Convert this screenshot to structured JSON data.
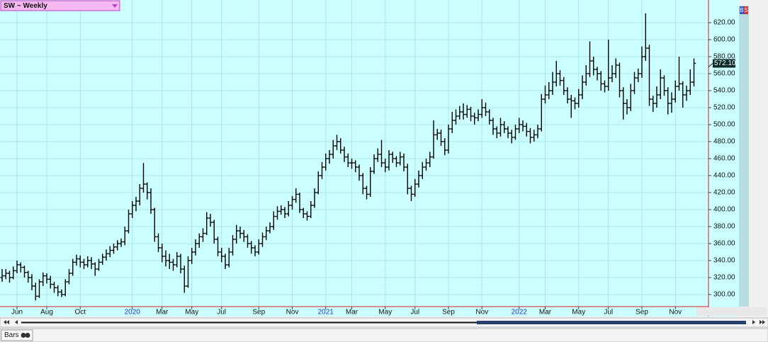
{
  "chart_data": {
    "type": "ohlc",
    "title": "SW ~ Weekly",
    "color": "#000000",
    "grid": true,
    "categories": [
      null,
      null,
      null,
      null,
      "Jun",
      null,
      null,
      null,
      null,
      null,
      null,
      null,
      "Aug",
      null,
      null,
      null,
      null,
      null,
      null,
      null,
      null,
      "Oct",
      null,
      null,
      null,
      null,
      null,
      null,
      null,
      null,
      null,
      null,
      null,
      null,
      null,
      "2020",
      null,
      null,
      null,
      null,
      null,
      null,
      null,
      "Mar",
      null,
      null,
      null,
      null,
      null,
      null,
      null,
      "May",
      null,
      null,
      null,
      null,
      null,
      null,
      null,
      "Jul",
      null,
      null,
      null,
      null,
      null,
      null,
      null,
      null,
      null,
      "Sep",
      null,
      null,
      null,
      null,
      null,
      null,
      null,
      null,
      "Nov",
      null,
      null,
      null,
      null,
      null,
      null,
      null,
      null,
      "2021",
      null,
      null,
      null,
      null,
      null,
      null,
      "Mar",
      null,
      null,
      null,
      null,
      null,
      null,
      null,
      null,
      "May",
      null,
      null,
      null,
      null,
      null,
      null,
      null,
      "Jul",
      null,
      null,
      null,
      null,
      null,
      null,
      null,
      null,
      "Sep",
      null,
      null,
      null,
      null,
      null,
      null,
      null,
      null,
      "Nov",
      null,
      null,
      null,
      null,
      null,
      null,
      null,
      null,
      null,
      "2022",
      null,
      null,
      null,
      null,
      null,
      null,
      "Mar",
      null,
      null,
      null,
      null,
      null,
      null,
      null,
      null,
      "May",
      null,
      null,
      null,
      null,
      null,
      null,
      null,
      "Jul",
      null,
      null,
      null,
      null,
      null,
      null,
      null,
      null,
      "Sep",
      null,
      null,
      null,
      null,
      null,
      null,
      null,
      null,
      "Nov",
      null,
      null,
      null,
      null,
      null
    ],
    "ohlc": [
      [
        320,
        330,
        315,
        322
      ],
      [
        322,
        330,
        318,
        325
      ],
      [
        325,
        328,
        314,
        320
      ],
      [
        320,
        333,
        318,
        328
      ],
      [
        328,
        340,
        325,
        335
      ],
      [
        335,
        338,
        326,
        332
      ],
      [
        332,
        334,
        320,
        326
      ],
      [
        326,
        328,
        314,
        320
      ],
      [
        320,
        324,
        305,
        310
      ],
      [
        310,
        314,
        293,
        298
      ],
      [
        298,
        318,
        296,
        315
      ],
      [
        315,
        326,
        310,
        322
      ],
      [
        322,
        325,
        313,
        318
      ],
      [
        318,
        322,
        307,
        312
      ],
      [
        312,
        315,
        302,
        308
      ],
      [
        308,
        311,
        298,
        303
      ],
      [
        303,
        306,
        297,
        300
      ],
      [
        300,
        318,
        298,
        315
      ],
      [
        315,
        330,
        312,
        325
      ],
      [
        325,
        342,
        322,
        338
      ],
      [
        338,
        347,
        334,
        342
      ],
      [
        342,
        346,
        332,
        338
      ],
      [
        338,
        342,
        330,
        335
      ],
      [
        335,
        345,
        332,
        340
      ],
      [
        340,
        344,
        330,
        336
      ],
      [
        336,
        338,
        322,
        330
      ],
      [
        330,
        342,
        328,
        338
      ],
      [
        338,
        348,
        335,
        344
      ],
      [
        344,
        353,
        340,
        348
      ],
      [
        348,
        357,
        344,
        352
      ],
      [
        352,
        360,
        348,
        356
      ],
      [
        356,
        364,
        352,
        360
      ],
      [
        360,
        366,
        356,
        362
      ],
      [
        362,
        380,
        358,
        375
      ],
      [
        375,
        400,
        372,
        395
      ],
      [
        395,
        410,
        390,
        405
      ],
      [
        405,
        415,
        398,
        410
      ],
      [
        410,
        430,
        405,
        425
      ],
      [
        425,
        455,
        420,
        430
      ],
      [
        430,
        432,
        412,
        420
      ],
      [
        420,
        425,
        395,
        400
      ],
      [
        400,
        402,
        362,
        368
      ],
      [
        368,
        372,
        350,
        355
      ],
      [
        355,
        360,
        338,
        345
      ],
      [
        345,
        352,
        333,
        340
      ],
      [
        340,
        348,
        330,
        338
      ],
      [
        338,
        342,
        328,
        335
      ],
      [
        335,
        350,
        332,
        345
      ],
      [
        345,
        348,
        325,
        330
      ],
      [
        330,
        334,
        302,
        310
      ],
      [
        310,
        345,
        308,
        340
      ],
      [
        340,
        355,
        336,
        350
      ],
      [
        350,
        365,
        346,
        360
      ],
      [
        360,
        372,
        355,
        368
      ],
      [
        368,
        378,
        362,
        372
      ],
      [
        372,
        397,
        370,
        390
      ],
      [
        390,
        395,
        380,
        385
      ],
      [
        385,
        388,
        360,
        365
      ],
      [
        365,
        368,
        345,
        350
      ],
      [
        350,
        355,
        338,
        345
      ],
      [
        345,
        348,
        330,
        335
      ],
      [
        335,
        355,
        332,
        350
      ],
      [
        350,
        370,
        346,
        365
      ],
      [
        365,
        382,
        360,
        375
      ],
      [
        375,
        380,
        366,
        372
      ],
      [
        372,
        376,
        362,
        368
      ],
      [
        368,
        371,
        355,
        360
      ],
      [
        360,
        363,
        348,
        355
      ],
      [
        355,
        358,
        345,
        350
      ],
      [
        350,
        365,
        347,
        360
      ],
      [
        360,
        373,
        356,
        368
      ],
      [
        368,
        380,
        364,
        375
      ],
      [
        375,
        385,
        372,
        380
      ],
      [
        380,
        398,
        376,
        392
      ],
      [
        392,
        404,
        388,
        398
      ],
      [
        398,
        405,
        394,
        400
      ],
      [
        400,
        403,
        390,
        395
      ],
      [
        395,
        410,
        392,
        405
      ],
      [
        405,
        416,
        400,
        412
      ],
      [
        412,
        425,
        408,
        418
      ],
      [
        418,
        420,
        396,
        400
      ],
      [
        400,
        402,
        390,
        395
      ],
      [
        395,
        398,
        387,
        392
      ],
      [
        392,
        410,
        390,
        405
      ],
      [
        405,
        425,
        402,
        420
      ],
      [
        420,
        445,
        418,
        440
      ],
      [
        440,
        456,
        436,
        450
      ],
      [
        450,
        466,
        446,
        460
      ],
      [
        460,
        470,
        454,
        465
      ],
      [
        465,
        482,
        460,
        475
      ],
      [
        475,
        488,
        470,
        480
      ],
      [
        480,
        484,
        466,
        470
      ],
      [
        470,
        474,
        456,
        462
      ],
      [
        462,
        466,
        450,
        455
      ],
      [
        455,
        460,
        448,
        455
      ],
      [
        455,
        458,
        444,
        450
      ],
      [
        450,
        453,
        434,
        440
      ],
      [
        440,
        443,
        418,
        425
      ],
      [
        425,
        428,
        412,
        418
      ],
      [
        418,
        450,
        415,
        445
      ],
      [
        445,
        465,
        442,
        460
      ],
      [
        460,
        472,
        456,
        465
      ],
      [
        465,
        482,
        450,
        455
      ],
      [
        455,
        460,
        444,
        450
      ],
      [
        450,
        470,
        446,
        465
      ],
      [
        465,
        468,
        455,
        460
      ],
      [
        460,
        463,
        450,
        455
      ],
      [
        455,
        468,
        452,
        462
      ],
      [
        462,
        466,
        445,
        450
      ],
      [
        450,
        454,
        418,
        425
      ],
      [
        425,
        428,
        410,
        418
      ],
      [
        418,
        436,
        415,
        430
      ],
      [
        430,
        446,
        426,
        440
      ],
      [
        440,
        456,
        436,
        450
      ],
      [
        450,
        460,
        446,
        455
      ],
      [
        455,
        468,
        450,
        462
      ],
      [
        462,
        505,
        460,
        488
      ],
      [
        488,
        495,
        482,
        490
      ],
      [
        490,
        494,
        475,
        480
      ],
      [
        480,
        484,
        464,
        470
      ],
      [
        470,
        500,
        466,
        495
      ],
      [
        495,
        515,
        490,
        505
      ],
      [
        505,
        518,
        500,
        510
      ],
      [
        510,
        522,
        506,
        515
      ],
      [
        515,
        525,
        506,
        512
      ],
      [
        512,
        523,
        508,
        518
      ],
      [
        518,
        521,
        504,
        510
      ],
      [
        510,
        514,
        500,
        508
      ],
      [
        508,
        518,
        504,
        512
      ],
      [
        512,
        530,
        508,
        520
      ],
      [
        520,
        526,
        510,
        515
      ],
      [
        515,
        518,
        500,
        505
      ],
      [
        505,
        508,
        488,
        495
      ],
      [
        495,
        498,
        484,
        490
      ],
      [
        490,
        508,
        486,
        500
      ],
      [
        500,
        504,
        490,
        495
      ],
      [
        495,
        498,
        484,
        490
      ],
      [
        490,
        494,
        478,
        485
      ],
      [
        485,
        500,
        482,
        495
      ],
      [
        495,
        508,
        490,
        500
      ],
      [
        500,
        505,
        492,
        498
      ],
      [
        498,
        502,
        486,
        492
      ],
      [
        492,
        496,
        478,
        485
      ],
      [
        485,
        494,
        480,
        488
      ],
      [
        488,
        500,
        484,
        495
      ],
      [
        495,
        536,
        492,
        530
      ],
      [
        530,
        546,
        525,
        535
      ],
      [
        535,
        550,
        530,
        540
      ],
      [
        540,
        562,
        535,
        550
      ],
      [
        550,
        575,
        545,
        560
      ],
      [
        560,
        564,
        546,
        552
      ],
      [
        552,
        556,
        535,
        540
      ],
      [
        540,
        544,
        525,
        530
      ],
      [
        530,
        535,
        508,
        528
      ],
      [
        528,
        532,
        518,
        525
      ],
      [
        525,
        542,
        520,
        535
      ],
      [
        535,
        558,
        530,
        550
      ],
      [
        550,
        570,
        546,
        560
      ],
      [
        560,
        598,
        556,
        575
      ],
      [
        575,
        580,
        558,
        565
      ],
      [
        565,
        568,
        552,
        560
      ],
      [
        560,
        563,
        540,
        548
      ],
      [
        548,
        552,
        538,
        545
      ],
      [
        545,
        600,
        540,
        555
      ],
      [
        555,
        570,
        550,
        560
      ],
      [
        560,
        578,
        555,
        570
      ],
      [
        570,
        573,
        532,
        540
      ],
      [
        540,
        544,
        506,
        525
      ],
      [
        525,
        530,
        512,
        520
      ],
      [
        520,
        548,
        516,
        540
      ],
      [
        540,
        562,
        536,
        555
      ],
      [
        555,
        566,
        550,
        560
      ],
      [
        560,
        592,
        555,
        580
      ],
      [
        580,
        631,
        575,
        590
      ],
      [
        590,
        594,
        522,
        530
      ],
      [
        530,
        534,
        515,
        525
      ],
      [
        525,
        545,
        520,
        535
      ],
      [
        535,
        565,
        530,
        555
      ],
      [
        555,
        558,
        534,
        540
      ],
      [
        540,
        544,
        512,
        525
      ],
      [
        525,
        538,
        514,
        530
      ],
      [
        530,
        552,
        526,
        545
      ],
      [
        545,
        580,
        540,
        548
      ],
      [
        548,
        551,
        520,
        535
      ],
      [
        535,
        546,
        528,
        540
      ],
      [
        540,
        565,
        535,
        550
      ],
      [
        550,
        578,
        545,
        572.1
      ]
    ],
    "ylim": [
      285.8,
      646.7
    ],
    "yticks": [
      {
        "value": 300,
        "label": "300.00"
      },
      {
        "value": 320,
        "label": "320.00"
      },
      {
        "value": 340,
        "label": "340.00"
      },
      {
        "value": 360,
        "label": "360.00"
      },
      {
        "value": 380,
        "label": "380.00"
      },
      {
        "value": 400,
        "label": "400.00"
      },
      {
        "value": 420,
        "label": "420.00"
      },
      {
        "value": 440,
        "label": "440.00"
      },
      {
        "value": 460,
        "label": "460.00"
      },
      {
        "value": 480,
        "label": "480.00"
      },
      {
        "value": 500,
        "label": "500.00"
      },
      {
        "value": 520,
        "label": "520.00"
      },
      {
        "value": 540,
        "label": "540.00"
      },
      {
        "value": 560,
        "label": "560.00"
      },
      {
        "value": 580,
        "label": "580.00"
      },
      {
        "value": 600,
        "label": "600.00"
      },
      {
        "value": 620,
        "label": "620.00"
      }
    ],
    "last_price": {
      "value": 572.1,
      "label": "572.10"
    },
    "buttons": [
      "B",
      "S"
    ],
    "footer": "Bars"
  }
}
